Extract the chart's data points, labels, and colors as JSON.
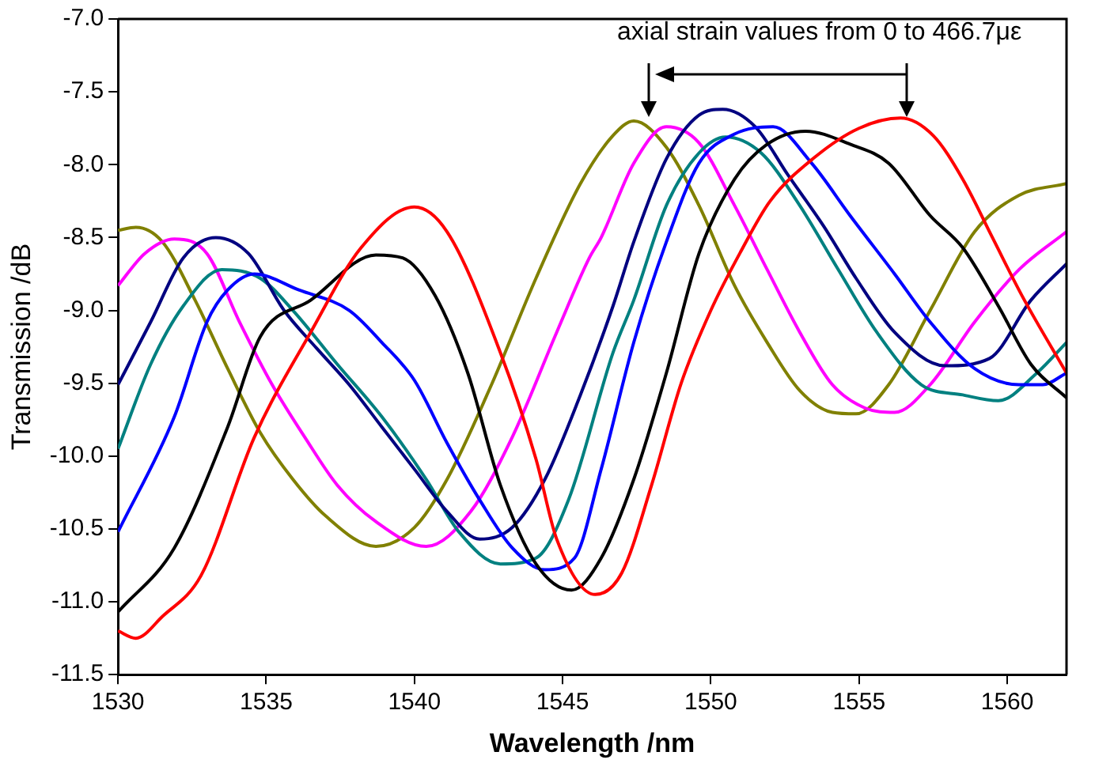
{
  "chart_data": {
    "type": "line",
    "xlabel": "Wavelength /nm",
    "ylabel": "Transmission /dB",
    "xlim": [
      1530,
      1562
    ],
    "xticks": [
      1530,
      1535,
      1540,
      1545,
      1550,
      1555,
      1560
    ],
    "ylim": [
      -11.5,
      -7
    ],
    "yticks": [
      {
        "value": -11.5,
        "label": "-11.5"
      },
      {
        "value": -11,
        "label": "-11.0"
      },
      {
        "value": -10.5,
        "label": "-10.5"
      },
      {
        "value": -10,
        "label": "-10.0"
      },
      {
        "value": -9.5,
        "label": "-9.5"
      },
      {
        "value": -9,
        "label": "-9.0"
      },
      {
        "value": -8.5,
        "label": "-8.5"
      },
      {
        "value": -8,
        "label": "-8.0"
      },
      {
        "value": -7.5,
        "label": "-7.5"
      },
      {
        "value": -7,
        "label": "-7.0"
      }
    ],
    "grid": false,
    "legend": false,
    "marker": "none",
    "line_style": "solid",
    "annotations": [
      "axial strain values from 0 to 466.7με"
    ],
    "series": [
      {
        "color": "#ff0000",
        "x": [
          1530,
          1530.6,
          1531.5,
          1532.8,
          1534.6,
          1536.5,
          1538.2,
          1540,
          1541.1,
          1542.9,
          1544.1,
          1544.8,
          1546.1,
          1547,
          1548,
          1549,
          1550,
          1551,
          1552,
          1553.5,
          1555,
          1556.4,
          1557.5,
          1558.5,
          1559.5,
          1560.5,
          1562
        ],
        "values": [
          -11.2,
          -11.25,
          -11.1,
          -10.82,
          -9.87,
          -9.15,
          -8.57,
          -8.29,
          -8.46,
          -9.29,
          -10.02,
          -10.57,
          -10.95,
          -10.8,
          -10.2,
          -9.5,
          -9.0,
          -8.6,
          -8.25,
          -7.95,
          -7.75,
          -7.68,
          -7.8,
          -8.1,
          -8.5,
          -8.9,
          -9.43
        ]
      },
      {
        "color": "#000000",
        "x": [
          1530,
          1531.9,
          1533.7,
          1534.8,
          1536.5,
          1538.7,
          1539.6,
          1540.7,
          1541.8,
          1542.9,
          1544.1,
          1545.3,
          1546.3,
          1547.4,
          1548.5,
          1549.6,
          1550.8,
          1551.9,
          1553.2,
          1554.7,
          1556,
          1557.4,
          1558.5,
          1559.7,
          1560.8,
          1562
        ],
        "values": [
          -11.07,
          -10.63,
          -9.8,
          -9.18,
          -8.93,
          -8.62,
          -8.64,
          -8.9,
          -9.43,
          -10.2,
          -10.74,
          -10.92,
          -10.7,
          -10.16,
          -9.43,
          -8.61,
          -8.1,
          -7.86,
          -7.77,
          -7.86,
          -7.99,
          -8.35,
          -8.57,
          -8.97,
          -9.37,
          -9.6
        ]
      },
      {
        "color": "#0000ff",
        "x": [
          1530,
          1531.9,
          1533,
          1533.7,
          1534.6,
          1536.1,
          1537.8,
          1538.9,
          1540,
          1541.1,
          1542.2,
          1543.3,
          1544.4,
          1545.4,
          1546.3,
          1547.4,
          1548.5,
          1549.6,
          1550.8,
          1552.1,
          1553.4,
          1554.7,
          1556.2,
          1557.4,
          1558.9,
          1560.4,
          1561.2,
          1562
        ],
        "values": [
          -10.52,
          -9.73,
          -9.08,
          -8.86,
          -8.75,
          -8.86,
          -9.0,
          -9.22,
          -9.48,
          -9.91,
          -10.3,
          -10.63,
          -10.78,
          -10.7,
          -10.09,
          -9.22,
          -8.53,
          -7.99,
          -7.79,
          -7.74,
          -7.99,
          -8.35,
          -8.75,
          -9.08,
          -9.4,
          -9.51,
          -9.51,
          -9.43
        ]
      },
      {
        "color": "#000080",
        "x": [
          1530,
          1531.1,
          1532.2,
          1533.3,
          1534.4,
          1535.6,
          1536.7,
          1537.8,
          1538.9,
          1540,
          1541.1,
          1542.2,
          1543.3,
          1544.4,
          1545.6,
          1546.7,
          1547.4,
          1548.5,
          1549.6,
          1550.4,
          1551.5,
          1552.6,
          1553.8,
          1554.9,
          1556.2,
          1557.9,
          1559.4,
          1560.8,
          1562
        ],
        "values": [
          -9.51,
          -9.08,
          -8.64,
          -8.5,
          -8.61,
          -9.0,
          -9.26,
          -9.51,
          -9.8,
          -10.09,
          -10.38,
          -10.57,
          -10.49,
          -10.16,
          -9.58,
          -8.97,
          -8.53,
          -7.96,
          -7.66,
          -7.62,
          -7.74,
          -8.07,
          -8.42,
          -8.78,
          -9.15,
          -9.38,
          -9.33,
          -8.93,
          -8.68
        ]
      },
      {
        "color": "#008080",
        "x": [
          1530,
          1531.1,
          1532.2,
          1533.5,
          1534.8,
          1535.9,
          1537.4,
          1538.9,
          1540.4,
          1541.5,
          1542.9,
          1544.1,
          1545.2,
          1546.7,
          1547.4,
          1548.5,
          1549.6,
          1550.5,
          1551.7,
          1553,
          1554.3,
          1555.6,
          1557.1,
          1558.5,
          1559.7,
          1561,
          1562
        ],
        "values": [
          -9.95,
          -9.37,
          -8.97,
          -8.72,
          -8.78,
          -9.0,
          -9.37,
          -9.73,
          -10.16,
          -10.52,
          -10.74,
          -10.7,
          -10.3,
          -9.29,
          -8.93,
          -8.28,
          -7.92,
          -7.81,
          -7.92,
          -8.28,
          -8.72,
          -9.15,
          -9.51,
          -9.58,
          -9.62,
          -9.43,
          -9.22
        ]
      },
      {
        "color": "#ff00ff",
        "x": [
          1530,
          1530.9,
          1531.9,
          1533,
          1534.1,
          1535.2,
          1536.3,
          1537.4,
          1538.7,
          1540.4,
          1541.9,
          1543.3,
          1544.8,
          1545.9,
          1546.3,
          1547.4,
          1548.5,
          1549.6,
          1550.8,
          1551.9,
          1553,
          1554.1,
          1555.2,
          1556.2,
          1557.4,
          1558.9,
          1560.4,
          1562
        ],
        "values": [
          -8.83,
          -8.61,
          -8.51,
          -8.61,
          -9.08,
          -9.51,
          -9.87,
          -10.2,
          -10.45,
          -10.62,
          -10.38,
          -9.87,
          -9.15,
          -8.64,
          -8.5,
          -7.99,
          -7.74,
          -7.85,
          -8.28,
          -8.72,
          -9.15,
          -9.51,
          -9.67,
          -9.7,
          -9.51,
          -9.08,
          -8.72,
          -8.46
        ]
      },
      {
        "color": "#808000",
        "x": [
          1530,
          1530.6,
          1531.5,
          1532.6,
          1533.7,
          1534.8,
          1535.9,
          1537,
          1538.7,
          1540,
          1541.1,
          1542.6,
          1544.1,
          1545.6,
          1546.7,
          1547.4,
          1548.5,
          1549.6,
          1550.8,
          1551.9,
          1553,
          1554.1,
          1554.9,
          1556,
          1557.4,
          1558.9,
          1560.4,
          1562
        ],
        "values": [
          -8.45,
          -8.43,
          -8.53,
          -8.93,
          -9.4,
          -9.84,
          -10.16,
          -10.41,
          -10.62,
          -10.49,
          -10.16,
          -9.51,
          -8.78,
          -8.13,
          -7.8,
          -7.7,
          -7.88,
          -8.28,
          -8.83,
          -9.22,
          -9.55,
          -9.7,
          -9.71,
          -9.51,
          -9.0,
          -8.46,
          -8.21,
          -8.13
        ]
      }
    ]
  }
}
